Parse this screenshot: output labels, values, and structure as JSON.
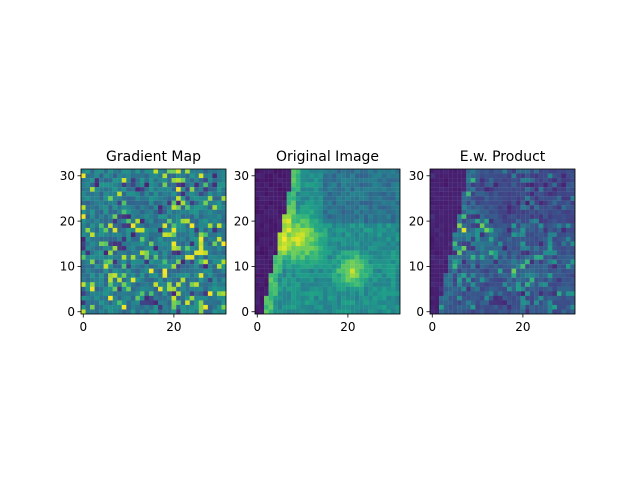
{
  "chart_data": [
    {
      "type": "heatmap",
      "title": "Gradient Map",
      "colormap": "viridis",
      "grid_size": [
        32,
        32
      ],
      "x_ticks": [
        0,
        20
      ],
      "y_ticks": [
        0,
        10,
        20,
        30
      ],
      "xlim": [
        -0.5,
        31.5
      ],
      "ylim": [
        31.5,
        -0.5
      ],
      "pattern": "noise"
    },
    {
      "type": "heatmap",
      "title": "Original Image",
      "colormap": "viridis",
      "grid_size": [
        32,
        32
      ],
      "x_ticks": [
        0,
        20
      ],
      "y_ticks": [
        0,
        10,
        20,
        30
      ],
      "xlim": [
        -0.5,
        31.5
      ],
      "ylim": [
        31.5,
        -0.5
      ],
      "pattern": "image"
    },
    {
      "type": "heatmap",
      "title": "E.w. Product",
      "colormap": "viridis",
      "grid_size": [
        32,
        32
      ],
      "x_ticks": [
        0,
        20
      ],
      "y_ticks": [
        0,
        10,
        20,
        30
      ],
      "xlim": [
        -0.5,
        31.5
      ],
      "ylim": [
        31.5,
        -0.5
      ],
      "pattern": "product"
    }
  ]
}
